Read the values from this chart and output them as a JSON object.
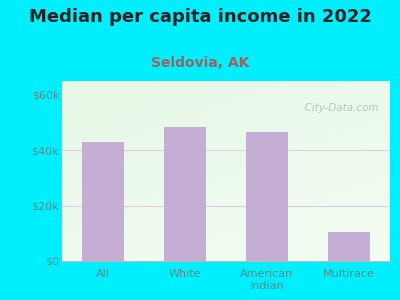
{
  "title": "Median per capita income in 2022",
  "subtitle": "Seldovia, AK",
  "categories": [
    "All",
    "White",
    "American\nIndian",
    "Multirace"
  ],
  "values": [
    43000,
    48500,
    46500,
    10500
  ],
  "bar_color": "#c4aed4",
  "background_outer": "#00efff",
  "title_color": "#222222",
  "subtitle_color": "#a06060",
  "tick_color": "#5a8a8a",
  "yticks": [
    0,
    20000,
    40000,
    60000
  ],
  "ylim": [
    0,
    65000
  ],
  "watermark": "  City-Data.com",
  "title_fontsize": 13,
  "subtitle_fontsize": 10,
  "tick_fontsize": 8,
  "xlabel_fontsize": 8
}
